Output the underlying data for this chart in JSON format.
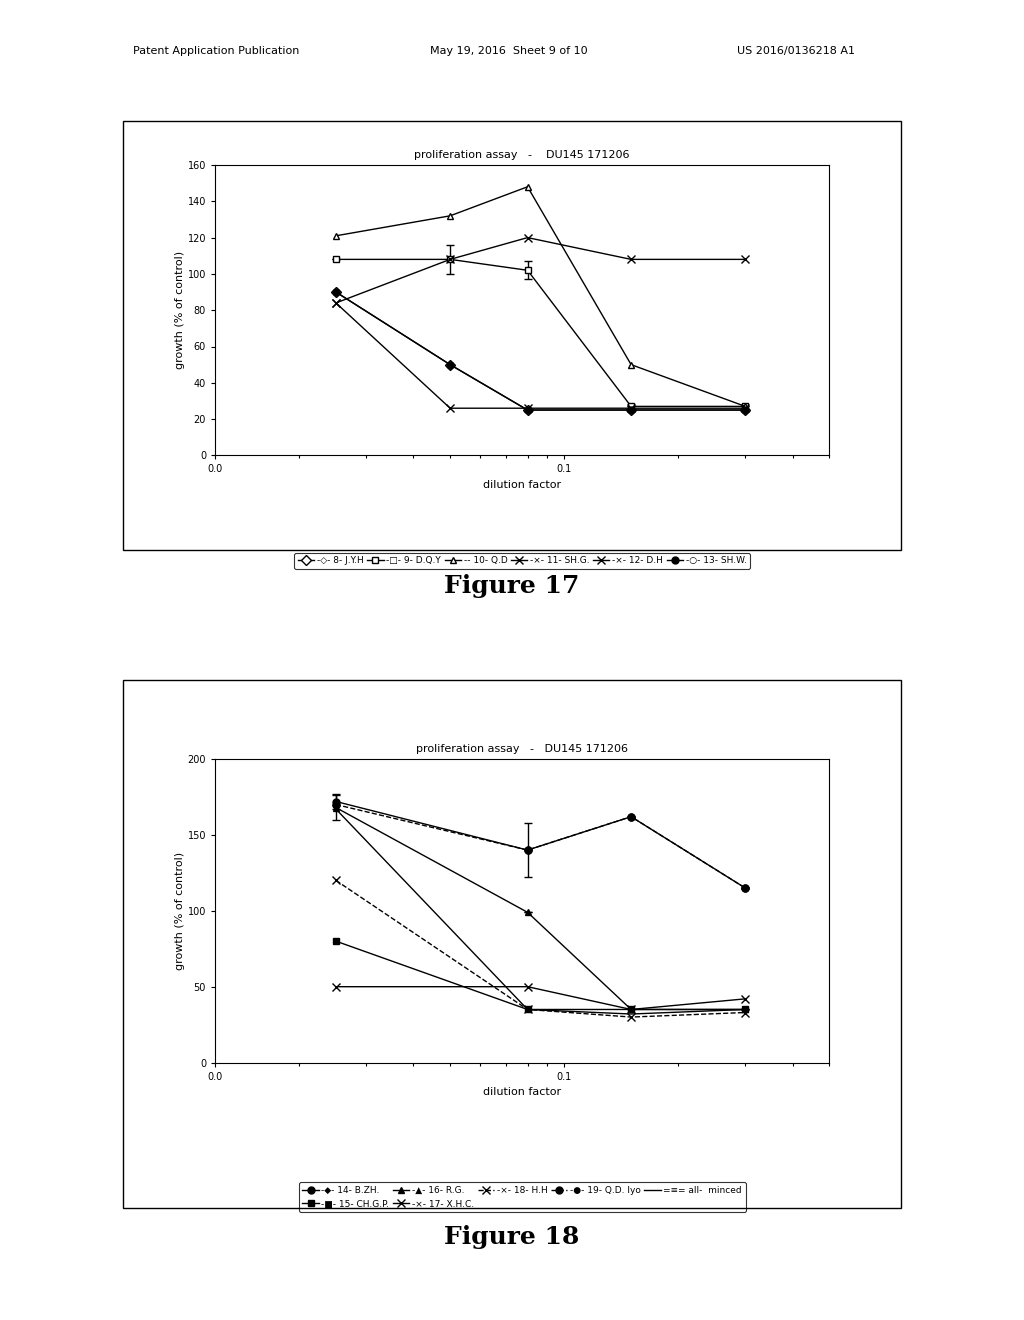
{
  "page_header_left": "Patent Application Publication",
  "page_header_mid": "May 19, 2016  Sheet 9 of 10",
  "page_header_right": "US 2016/0136218 A1",
  "fig17_caption": "Figure 17",
  "fig18_caption": "Figure 18",
  "fig17": {
    "title": "proliferation assay   -    DU145 171206",
    "xlabel": "dilution factor",
    "ylabel": "growth (% of control)",
    "ylim": [
      0,
      160
    ],
    "yticks": [
      0,
      20,
      40,
      60,
      80,
      100,
      120,
      140,
      160
    ],
    "series": [
      {
        "label": "-◇- 8- J.Y.H",
        "marker": "D",
        "mfc": "white",
        "ms": 5,
        "ls": "-",
        "x": [
          0.025,
          0.05,
          0.08,
          0.15,
          0.3
        ],
        "y": [
          90,
          50,
          25,
          25,
          25
        ],
        "yerr": [
          0,
          0,
          0,
          0,
          0
        ]
      },
      {
        "label": "-□- 9- D.Q.Y",
        "marker": "s",
        "mfc": "white",
        "ms": 5,
        "ls": "-",
        "x": [
          0.025,
          0.05,
          0.08,
          0.15,
          0.3
        ],
        "y": [
          108,
          108,
          102,
          27,
          27
        ],
        "yerr": [
          0,
          8,
          5,
          0,
          0
        ]
      },
      {
        "label": "-- 10- Q.D",
        "marker": "^",
        "mfc": "white",
        "ms": 5,
        "ls": "-",
        "x": [
          0.025,
          0.05,
          0.08,
          0.15,
          0.3
        ],
        "y": [
          121,
          132,
          148,
          50,
          27
        ],
        "yerr": [
          0,
          0,
          0,
          0,
          0
        ]
      },
      {
        "label": "-×- 11- SH.G.",
        "marker": "x",
        "mfc": "black",
        "ms": 6,
        "ls": "-",
        "x": [
          0.025,
          0.05,
          0.08,
          0.15,
          0.3
        ],
        "y": [
          84,
          26,
          26,
          26,
          26
        ],
        "yerr": [
          0,
          0,
          0,
          0,
          0
        ]
      },
      {
        "label": "-×- 12- D.H",
        "marker": "x",
        "mfc": "black",
        "ms": 6,
        "ls": "-",
        "x": [
          0.025,
          0.05,
          0.08,
          0.15,
          0.3
        ],
        "y": [
          84,
          108,
          120,
          108,
          108
        ],
        "yerr": [
          0,
          0,
          0,
          0,
          0
        ]
      },
      {
        "label": "-○- 13- SH.W.",
        "marker": "o",
        "mfc": "black",
        "ms": 5,
        "ls": "-",
        "x": [
          0.025,
          0.05,
          0.08,
          0.15,
          0.3
        ],
        "y": [
          90,
          50,
          25,
          25,
          25
        ],
        "yerr": [
          0,
          0,
          0,
          0,
          0
        ]
      }
    ]
  },
  "fig18": {
    "title": "proliferation assay   -   DU145 171206",
    "xlabel": "dilution factor",
    "ylabel": "growth (% of control)",
    "ylim": [
      0,
      200
    ],
    "yticks": [
      0,
      50,
      100,
      150,
      200
    ],
    "series": [
      {
        "label": "-◆- 14- B.ZH.",
        "marker": "o",
        "mfc": "black",
        "ms": 5,
        "ls": "-",
        "x": [
          0.025,
          0.08,
          0.15,
          0.3
        ],
        "y": [
          172,
          140,
          162,
          115
        ],
        "yerr": [
          5,
          0,
          0,
          0
        ]
      },
      {
        "label": "-■- 15- CH.G.P.",
        "marker": "s",
        "mfc": "black",
        "ms": 5,
        "ls": "-",
        "x": [
          0.025,
          0.08,
          0.15,
          0.3
        ],
        "y": [
          80,
          35,
          35,
          35
        ],
        "yerr": [
          0,
          0,
          0,
          0
        ]
      },
      {
        "label": "-▲- 16- R.G.",
        "marker": "^",
        "mfc": "black",
        "ms": 5,
        "ls": "-",
        "x": [
          0.025,
          0.08,
          0.15,
          0.3
        ],
        "y": [
          168,
          99,
          35,
          35
        ],
        "yerr": [
          8,
          0,
          0,
          0
        ]
      },
      {
        "label": "-×- 17- X.H.C.",
        "marker": "x",
        "mfc": "black",
        "ms": 6,
        "ls": "-",
        "x": [
          0.025,
          0.08,
          0.15,
          0.3
        ],
        "y": [
          50,
          50,
          35,
          42
        ],
        "yerr": [
          0,
          0,
          0,
          0
        ]
      },
      {
        "label": "-×- 18- H.H",
        "marker": "x",
        "mfc": "black",
        "ms": 6,
        "ls": "--",
        "x": [
          0.025,
          0.08,
          0.15,
          0.3
        ],
        "y": [
          120,
          35,
          30,
          33
        ],
        "yerr": [
          0,
          0,
          0,
          0
        ]
      },
      {
        "label": "-●- 19- Q.D. lyo",
        "marker": "o",
        "mfc": "black",
        "ms": 5,
        "ls": "--",
        "x": [
          0.025,
          0.08,
          0.15,
          0.3
        ],
        "y": [
          170,
          140,
          162,
          115
        ],
        "yerr": [
          0,
          18,
          0,
          0
        ]
      },
      {
        "label": "=≡= all-  minced",
        "marker": "None",
        "mfc": "black",
        "ms": 5,
        "ls": "-",
        "x": [
          0.025,
          0.08,
          0.15,
          0.3
        ],
        "y": [
          167,
          35,
          32,
          35
        ],
        "yerr": [
          0,
          0,
          0,
          0
        ]
      }
    ]
  },
  "background_color": "#ffffff"
}
